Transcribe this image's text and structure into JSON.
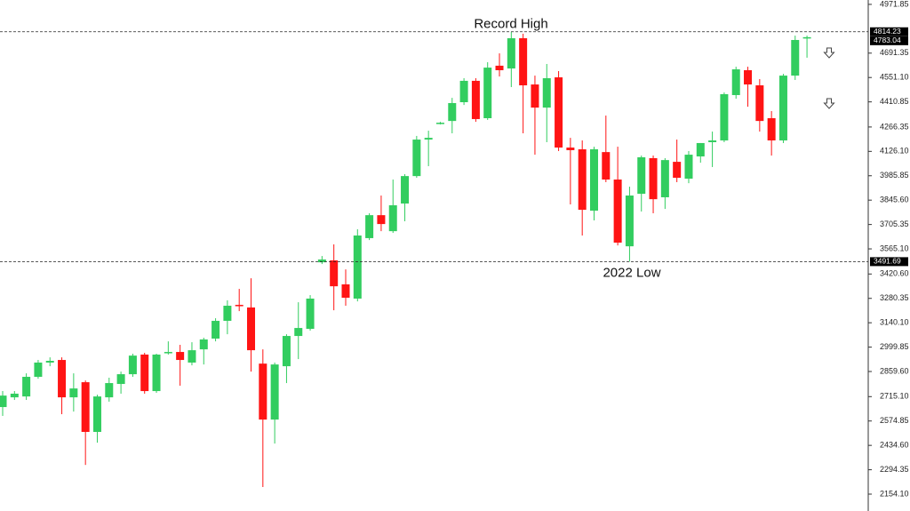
{
  "chart_data": {
    "type": "candlestick",
    "annotations": [
      "Record High",
      "2022 Low"
    ],
    "levels": [
      4814.23,
      3491.69
    ],
    "last_price": 4783.04,
    "up_color": "#32cd5f",
    "down_color": "#ff1414",
    "open": [
      2655,
      2711,
      2716,
      2829,
      2911,
      2926,
      2711,
      2798,
      2512,
      2711,
      2788,
      2844,
      2957,
      2747,
      2967,
      2972,
      2911,
      2987,
      3049,
      3151,
      3243,
      3228,
      2905,
      2583,
      2890,
      3064,
      3105,
      3488,
      3499,
      3361,
      3279,
      3627,
      3759,
      3667,
      3826,
      3984,
      4194,
      4286,
      4301,
      4409,
      4532,
      4317,
      4619,
      4603,
      4777,
      4511,
      4378,
      4552,
      4148,
      4138,
      3785,
      4122,
      3964,
      3580,
      3882,
      4087,
      3862,
      4066,
      3969,
      4097,
      4179,
      4189,
      4450,
      4593,
      4506,
      4317,
      4189,
      4562,
      4777
    ],
    "high": [
      2747,
      2747,
      2849,
      2926,
      2941,
      2941,
      2849,
      2808,
      2726,
      2824,
      2859,
      2962,
      2967,
      2962,
      3033,
      3013,
      3028,
      3054,
      3166,
      3269,
      3335,
      3396,
      2987,
      2911,
      3074,
      3258,
      3299,
      3524,
      3591,
      3447,
      3678,
      3770,
      3872,
      3964,
      3995,
      4215,
      4245,
      4296,
      4434,
      4547,
      4547,
      4639,
      4690,
      4814,
      4803,
      4562,
      4629,
      4588,
      4204,
      4189,
      4153,
      4332,
      4153,
      3923,
      4102,
      4102,
      4087,
      4194,
      4128,
      4174,
      4240,
      4465,
      4613,
      4613,
      4542,
      4358,
      4572,
      4792,
      4792
    ],
    "low": [
      2604,
      2696,
      2696,
      2818,
      2890,
      2614,
      2629,
      2322,
      2450,
      2686,
      2732,
      2829,
      2732,
      2737,
      2957,
      2778,
      2895,
      2900,
      3033,
      3074,
      3207,
      2859,
      2195,
      2445,
      2793,
      2931,
      3095,
      3478,
      3212,
      3238,
      3263,
      3616,
      3667,
      3657,
      3724,
      3974,
      4041,
      4281,
      4230,
      4393,
      4296,
      4307,
      4557,
      4496,
      4230,
      4107,
      4179,
      4128,
      3821,
      3642,
      3729,
      3949,
      3585,
      3492,
      3780,
      3770,
      3795,
      3949,
      3943,
      4061,
      4036,
      4179,
      4429,
      4383,
      4240,
      4102,
      4174,
      4537,
      4665
    ],
    "close": [
      2721,
      2732,
      2829,
      2911,
      2921,
      2711,
      2762,
      2512,
      2716,
      2793,
      2844,
      2951,
      2747,
      2957,
      2972,
      2926,
      2982,
      3044,
      3151,
      3238,
      3238,
      2982,
      2583,
      2900,
      3064,
      3110,
      3279,
      3504,
      3350,
      3284,
      3642,
      3759,
      3708,
      3816,
      3984,
      4194,
      4204,
      4291,
      4404,
      4532,
      4312,
      4608,
      4593,
      4777,
      4506,
      4378,
      4547,
      4148,
      4133,
      3790,
      4138,
      3964,
      3601,
      3872,
      4092,
      3851,
      4076,
      3974,
      4107,
      4174,
      4189,
      4455,
      4598,
      4511,
      4301,
      4189,
      4562,
      4767,
      4783
    ],
    "ylim": [
      2057,
      4997
    ],
    "yticks": [
      4971.85,
      4691.35,
      {
        "value": 4551.1,
        "label": "4551.10"
      },
      4410.85,
      4266.35,
      {
        "value": 4126.1,
        "label": "4126.10"
      },
      3985.85,
      {
        "value": 3845.6,
        "label": "3845.60"
      },
      3705.35,
      {
        "value": 3565.1,
        "label": "3565.10"
      },
      {
        "value": 3420.6,
        "label": "3420.60"
      },
      3280.35,
      {
        "value": 3140.1,
        "label": "3140.10"
      },
      2999.85,
      {
        "value": 2859.6,
        "label": "2859.60"
      },
      {
        "value": 2715.1,
        "label": "2715.10"
      },
      2574.85,
      {
        "value": 2434.6,
        "label": "2434.60"
      },
      2294.35,
      {
        "value": 2154.1,
        "label": "2154.10"
      }
    ]
  }
}
